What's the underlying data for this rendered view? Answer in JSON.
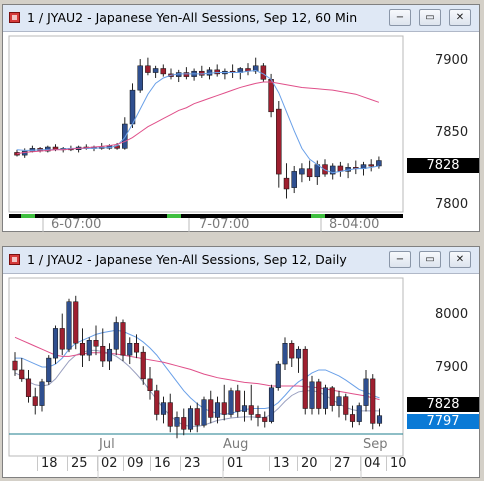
{
  "colors": {
    "up": "#2f4f8f",
    "down": "#9e1f2f",
    "ma_fast": "#6aa0e8",
    "ma_slow": "#e0508a",
    "price_box": "#000000",
    "prev_box": "#0a7ad6",
    "hline": "#1c7e8c"
  },
  "top": {
    "title": "1 / JYAU2 - Japanese Yen-All Sessions, Sep 12, 60 Min",
    "buttons": {
      "minimize": "−",
      "restore": "▭",
      "close": "✕"
    },
    "price_labels": [
      "7900",
      "7850",
      "7800"
    ],
    "last_price": "7828",
    "time_labels": [
      "6-07:00",
      "7-07:00",
      "8-04:00"
    ],
    "chart_data": {
      "type": "candlestick",
      "ylim": [
        7790,
        7920
      ],
      "candles": [
        [
          7834,
          7836,
          7831,
          7832
        ],
        [
          7832,
          7837,
          7830,
          7835
        ],
        [
          7835,
          7839,
          7834,
          7837
        ],
        [
          7837,
          7838,
          7834,
          7835
        ],
        [
          7835,
          7839,
          7834,
          7838
        ],
        [
          7838,
          7840,
          7835,
          7836
        ],
        [
          7836,
          7838,
          7834,
          7837
        ],
        [
          7837,
          7839,
          7835,
          7836
        ],
        [
          7836,
          7839,
          7834,
          7838
        ],
        [
          7838,
          7840,
          7836,
          7837
        ],
        [
          7837,
          7839,
          7835,
          7838
        ],
        [
          7838,
          7841,
          7836,
          7837
        ],
        [
          7837,
          7840,
          7836,
          7839
        ],
        [
          7839,
          7841,
          7836,
          7837
        ],
        [
          7837,
          7860,
          7836,
          7855
        ],
        [
          7855,
          7885,
          7852,
          7880
        ],
        [
          7880,
          7903,
          7878,
          7898
        ],
        [
          7898,
          7904,
          7891,
          7893
        ],
        [
          7893,
          7898,
          7889,
          7896
        ],
        [
          7896,
          7899,
          7890,
          7892
        ],
        [
          7892,
          7896,
          7888,
          7890
        ],
        [
          7890,
          7895,
          7886,
          7893
        ],
        [
          7893,
          7897,
          7888,
          7890
        ],
        [
          7890,
          7896,
          7887,
          7894
        ],
        [
          7894,
          7898,
          7889,
          7891
        ],
        [
          7891,
          7897,
          7888,
          7895
        ],
        [
          7895,
          7899,
          7890,
          7892
        ],
        [
          7892,
          7896,
          7888,
          7894
        ],
        [
          7894,
          7899,
          7889,
          7893
        ],
        [
          7893,
          7897,
          7888,
          7896
        ],
        [
          7896,
          7900,
          7891,
          7894
        ],
        [
          7894,
          7904,
          7892,
          7898
        ],
        [
          7898,
          7900,
          7886,
          7888
        ],
        [
          7888,
          7892,
          7860,
          7864
        ],
        [
          7866,
          7872,
          7808,
          7818
        ],
        [
          7815,
          7826,
          7800,
          7807
        ],
        [
          7808,
          7824,
          7804,
          7820
        ],
        [
          7818,
          7826,
          7812,
          7822
        ],
        [
          7822,
          7828,
          7813,
          7816
        ],
        [
          7816,
          7828,
          7810,
          7825
        ],
        [
          7825,
          7829,
          7816,
          7818
        ],
        [
          7818,
          7826,
          7814,
          7824
        ],
        [
          7824,
          7827,
          7816,
          7820
        ],
        [
          7820,
          7826,
          7815,
          7823
        ],
        [
          7823,
          7828,
          7818,
          7822
        ],
        [
          7822,
          7827,
          7817,
          7825
        ],
        [
          7825,
          7829,
          7820,
          7824
        ],
        [
          7824,
          7831,
          7822,
          7828
        ]
      ],
      "ma_fast": [
        7836,
        7835.5,
        7835.5,
        7836,
        7836,
        7836,
        7836.5,
        7837,
        7837,
        7837,
        7837,
        7837.5,
        7837.5,
        7839,
        7845,
        7855,
        7866,
        7877,
        7885,
        7889,
        7891,
        7892,
        7892,
        7892,
        7892,
        7892.5,
        7893,
        7893,
        7893,
        7893,
        7894,
        7894.5,
        7892,
        7888,
        7878,
        7864,
        7850,
        7837,
        7829,
        7825,
        7821,
        7819,
        7820,
        7821,
        7822,
        7822,
        7823,
        7824
      ],
      "ma_slow": [
        7833,
        7834,
        7834.5,
        7835,
        7835.5,
        7836,
        7836,
        7836.5,
        7837,
        7837.5,
        7838,
        7838.5,
        7839,
        7840,
        7842,
        7845,
        7849,
        7853,
        7856,
        7859,
        7862,
        7865,
        7867,
        7870,
        7872,
        7874,
        7876,
        7878,
        7880,
        7882,
        7883.5,
        7885,
        7886,
        7886,
        7885,
        7884,
        7883,
        7882,
        7881.5,
        7881,
        7880.5,
        7880,
        7879,
        7878,
        7877,
        7875,
        7873,
        7871
      ]
    }
  },
  "bottom": {
    "title": "1 / JYAU2 - Japanese Yen-All Sessions, Sep 12, Daily",
    "buttons": {
      "minimize": "−",
      "restore": "▭",
      "close": "✕"
    },
    "price_labels": [
      "8000",
      "7900"
    ],
    "last_price": "7828",
    "prev_price": "7797",
    "month_labels": [
      "Jul",
      "Aug",
      "Sep"
    ],
    "day_labels": [
      "18",
      "25",
      "02",
      "09",
      "16",
      "23",
      "01",
      "13",
      "20",
      "27",
      "04",
      "10"
    ],
    "chart_data": {
      "type": "candlestick",
      "ylim": [
        7760,
        8060
      ],
      "hline": 7797,
      "candles": [
        [
          7920,
          7935,
          7895,
          7905
        ],
        [
          7905,
          7925,
          7885,
          7890
        ],
        [
          7890,
          7905,
          7850,
          7860
        ],
        [
          7860,
          7875,
          7830,
          7845
        ],
        [
          7845,
          7890,
          7835,
          7885
        ],
        [
          7885,
          7930,
          7880,
          7925
        ],
        [
          7925,
          7980,
          7915,
          7975
        ],
        [
          7975,
          8000,
          7930,
          7940
        ],
        [
          7940,
          8025,
          7935,
          8020
        ],
        [
          8020,
          8030,
          7940,
          7950
        ],
        [
          7950,
          7975,
          7910,
          7930
        ],
        [
          7930,
          7960,
          7920,
          7955
        ],
        [
          7955,
          7980,
          7930,
          7945
        ],
        [
          7945,
          7975,
          7910,
          7920
        ],
        [
          7920,
          7950,
          7905,
          7940
        ],
        [
          7940,
          7995,
          7930,
          7985
        ],
        [
          7985,
          7990,
          7920,
          7930
        ],
        [
          7930,
          7960,
          7915,
          7950
        ],
        [
          7950,
          7965,
          7925,
          7935
        ],
        [
          7935,
          7945,
          7880,
          7890
        ],
        [
          7890,
          7910,
          7855,
          7870
        ],
        [
          7870,
          7880,
          7820,
          7830
        ],
        [
          7830,
          7860,
          7815,
          7850
        ],
        [
          7850,
          7865,
          7800,
          7810
        ],
        [
          7810,
          7835,
          7790,
          7825
        ],
        [
          7825,
          7840,
          7795,
          7805
        ],
        [
          7805,
          7845,
          7800,
          7840
        ],
        [
          7840,
          7850,
          7800,
          7812
        ],
        [
          7812,
          7860,
          7808,
          7855
        ],
        [
          7855,
          7870,
          7815,
          7825
        ],
        [
          7825,
          7860,
          7815,
          7850
        ],
        [
          7850,
          7880,
          7820,
          7830
        ],
        [
          7830,
          7875,
          7825,
          7870
        ],
        [
          7870,
          7880,
          7825,
          7835
        ],
        [
          7835,
          7870,
          7818,
          7845
        ],
        [
          7845,
          7880,
          7820,
          7830
        ],
        [
          7830,
          7845,
          7810,
          7825
        ],
        [
          7825,
          7835,
          7808,
          7818
        ],
        [
          7818,
          7880,
          7815,
          7875
        ],
        [
          7875,
          7920,
          7870,
          7915
        ],
        [
          7915,
          7960,
          7905,
          7950
        ],
        [
          7950,
          7955,
          7910,
          7925
        ],
        [
          7925,
          7945,
          7900,
          7940
        ],
        [
          7940,
          7945,
          7830,
          7840
        ],
        [
          7840,
          7895,
          7830,
          7885
        ],
        [
          7885,
          7890,
          7830,
          7840
        ],
        [
          7840,
          7880,
          7830,
          7875
        ],
        [
          7875,
          7878,
          7835,
          7845
        ],
        [
          7845,
          7870,
          7825,
          7860
        ],
        [
          7860,
          7865,
          7820,
          7830
        ],
        [
          7830,
          7845,
          7808,
          7818
        ],
        [
          7818,
          7850,
          7812,
          7845
        ],
        [
          7845,
          7905,
          7835,
          7890
        ],
        [
          7890,
          7898,
          7805,
          7815
        ],
        [
          7815,
          7840,
          7810,
          7828
        ]
      ],
      "ma_fast": [
        7925,
        7925,
        7920,
        7915,
        7910,
        7910,
        7915,
        7925,
        7940,
        7950,
        7955,
        7960,
        7965,
        7968,
        7970,
        7972,
        7970,
        7965,
        7960,
        7952,
        7942,
        7930,
        7915,
        7900,
        7885,
        7870,
        7858,
        7848,
        7840,
        7835,
        7832,
        7830,
        7832,
        7835,
        7838,
        7840,
        7840,
        7840,
        7842,
        7850,
        7862,
        7875,
        7885,
        7892,
        7900,
        7905,
        7905,
        7900,
        7895,
        7888,
        7880,
        7872,
        7868,
        7862,
        7858
      ],
      "ma_slow": [
        7960,
        7955,
        7950,
        7945,
        7940,
        7935,
        7930,
        7928,
        7928,
        7930,
        7932,
        7934,
        7934,
        7934,
        7933,
        7932,
        7930,
        7928,
        7926,
        7924,
        7922,
        7920,
        7918,
        7915,
        7912,
        7909,
        7906,
        7902,
        7898,
        7895,
        7892,
        7890,
        7888,
        7886,
        7884,
        7883,
        7882,
        7880,
        7878,
        7878,
        7878,
        7878,
        7878,
        7877,
        7876,
        7875,
        7873,
        7871,
        7869,
        7867,
        7865,
        7863,
        7861,
        7858,
        7855
      ],
      "ma_band": [
        7900,
        7895,
        7885,
        7880,
        7878,
        7880,
        7890,
        7905,
        7920,
        7930,
        7935,
        7938,
        7938,
        7936,
        7933,
        7928,
        7920,
        7910,
        7898,
        7885,
        7870,
        7855,
        7840,
        7828,
        7818,
        7812,
        7810,
        7810,
        7812,
        7816,
        7820,
        7822,
        7824,
        7825,
        7826,
        7826,
        7825,
        7825,
        7830,
        7840,
        7852,
        7862,
        7868,
        7870,
        7870,
        7868,
        7862,
        7855,
        7848,
        7842,
        7838,
        7836,
        7836,
        7836,
        7836
      ]
    }
  }
}
